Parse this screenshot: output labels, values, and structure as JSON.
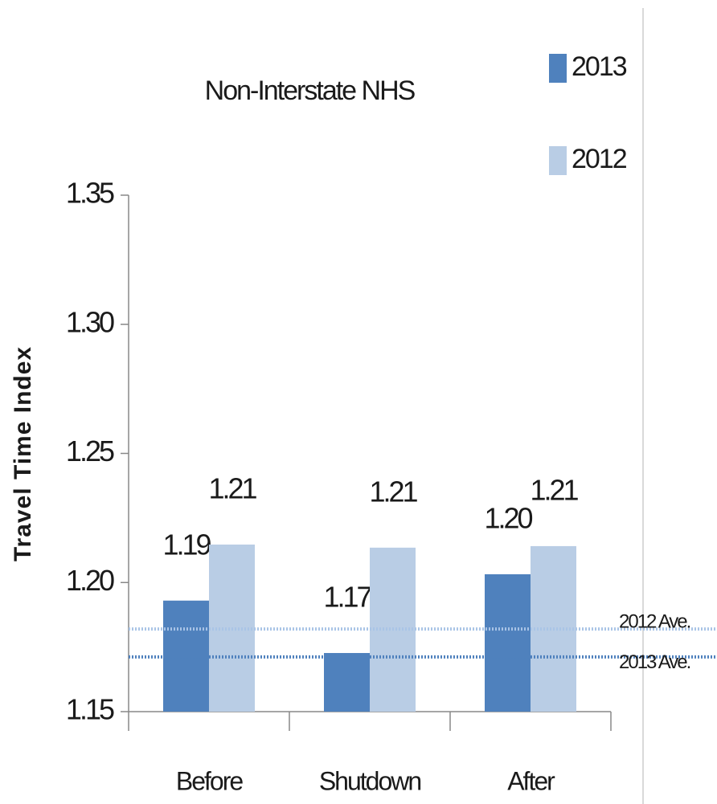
{
  "chart_data": {
    "type": "bar",
    "title": "Non-Interstate NHS",
    "ylabel": "Travel Time Index",
    "categories": [
      "Before",
      "Shutdown",
      "After"
    ],
    "series": [
      {
        "name": "2013",
        "color": "#4f81bd",
        "values": [
          1.193,
          1.1727,
          1.2032
        ],
        "value_labels": [
          "1.19",
          "1.17",
          "1.20"
        ]
      },
      {
        "name": "2012",
        "color": "#b9cde5",
        "values": [
          1.2147,
          1.2135,
          1.2141
        ],
        "value_labels": [
          "1.21",
          "1.21",
          "1.21"
        ]
      }
    ],
    "reference_lines": [
      {
        "label": "2012 Ave.",
        "value": 1.182,
        "color": "#a9c4e6"
      },
      {
        "label": "2013 Ave.",
        "value": 1.1712,
        "color": "#4f81bd"
      }
    ],
    "ylim": [
      1.15,
      1.35
    ],
    "yticks": [
      1.15,
      {
        "value": 1.2,
        "label": "1.20"
      },
      1.25,
      {
        "value": 1.3,
        "label": "1.30"
      },
      1.35
    ],
    "grid": false,
    "legend": "top-right"
  }
}
